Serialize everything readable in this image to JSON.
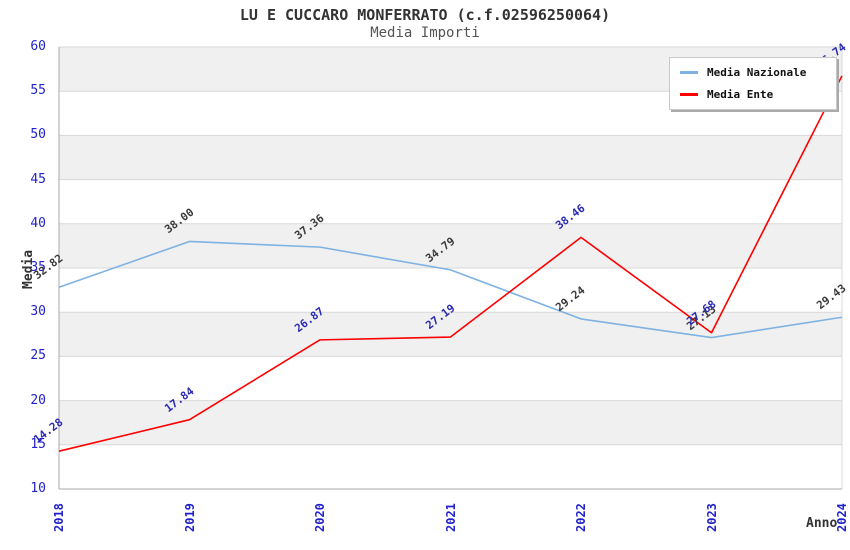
{
  "chart_data": {
    "type": "line",
    "title": "LU E CUCCARO MONFERRATO (c.f.02596250064)",
    "subtitle": "Media Importi",
    "xlabel": "Anno",
    "ylabel": "Media",
    "categories": [
      "2018",
      "2019",
      "2020",
      "2021",
      "2022",
      "2023",
      "2024"
    ],
    "series": [
      {
        "name": "Media Nazionale",
        "color": "#7EB2E3",
        "label_color": "#3a3a3a",
        "values": [
          32.82,
          38.0,
          37.36,
          34.79,
          29.24,
          27.13,
          29.43
        ]
      },
      {
        "name": "Media Ente",
        "color": "#FF0000",
        "label_color": "#2929b3",
        "values": [
          14.28,
          17.84,
          26.87,
          27.19,
          38.46,
          27.68,
          56.74
        ]
      }
    ],
    "ylim": [
      10,
      60
    ],
    "yticks": [
      10,
      15,
      20,
      25,
      30,
      35,
      40,
      45,
      50,
      55,
      60
    ],
    "grid": "horizontal",
    "band_color": "#f0f0f0",
    "grid_color": "#d8d8d8",
    "axis_color": "#aaaaaa",
    "tick_label_color": "#2222cc",
    "legend_position": "top-right"
  }
}
